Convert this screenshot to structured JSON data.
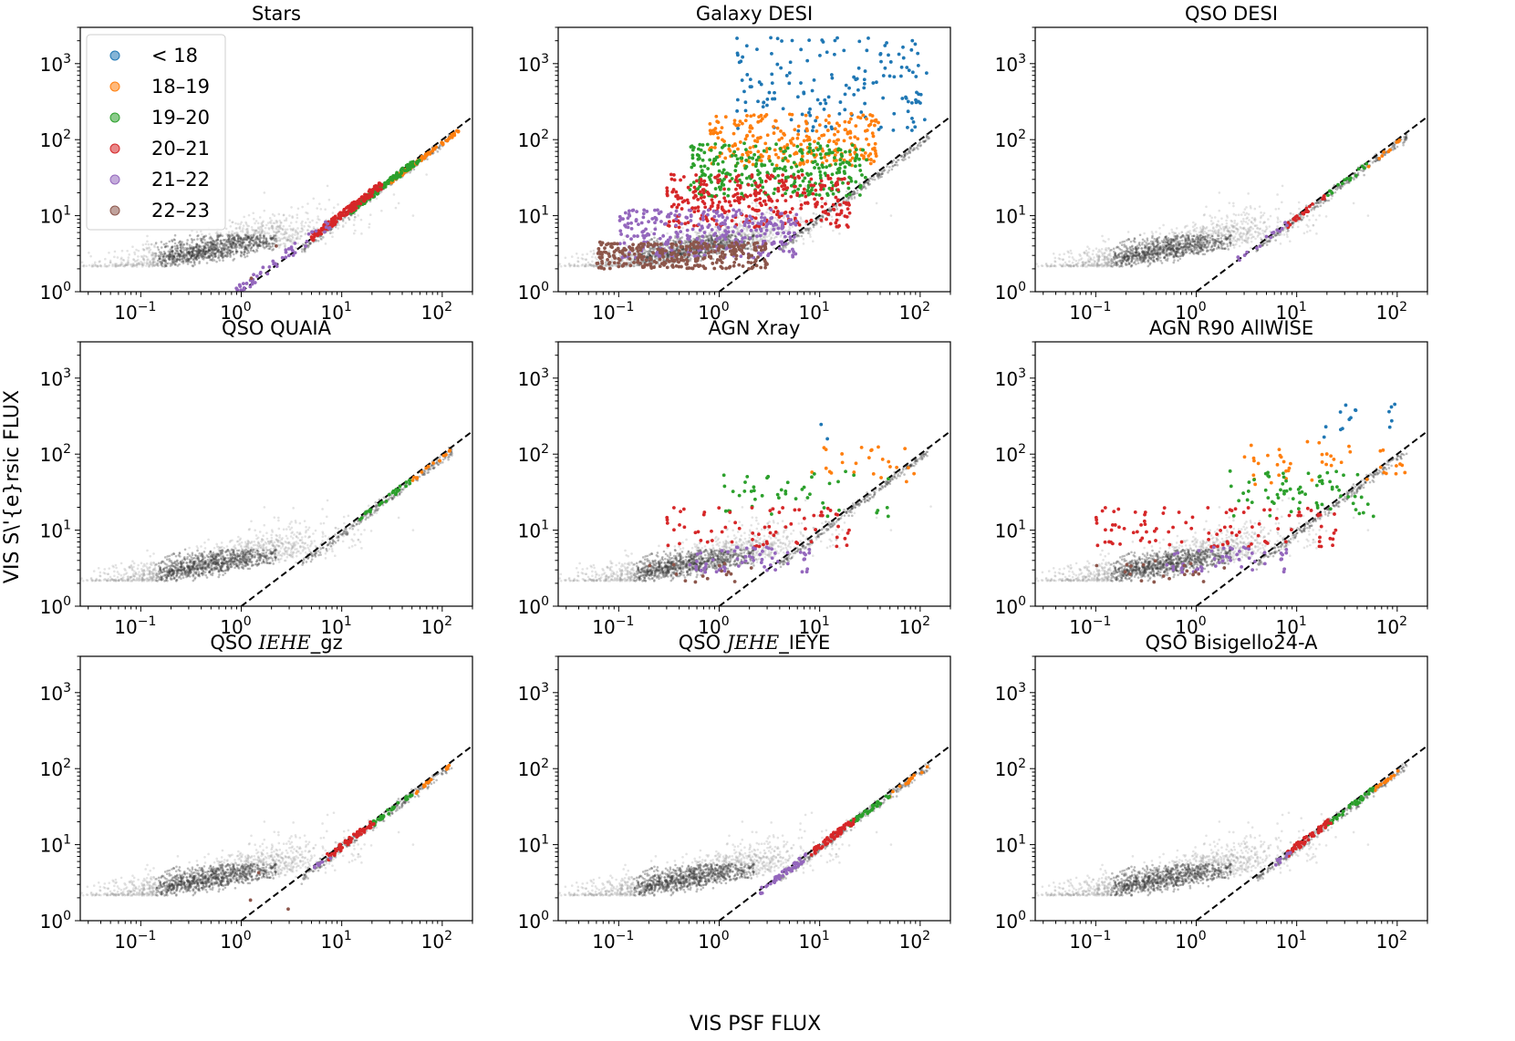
{
  "figure": {
    "xlabel": "VIS PSF FLUX",
    "ylabel": "VIS S\\'{e}rsic FLUX"
  },
  "legend": {
    "entries": [
      {
        "label": "< 18",
        "color": "#1f77b4"
      },
      {
        "label": "18–19",
        "color": "#ff7f0e"
      },
      {
        "label": "19–20",
        "color": "#2ca02c"
      },
      {
        "label": "20–21",
        "color": "#d62728"
      },
      {
        "label": "21–22",
        "color": "#9467bd"
      },
      {
        "label": "22–23",
        "color": "#8c564b"
      }
    ]
  },
  "chart_data": [
    {
      "type": "scatter",
      "title": "Stars",
      "title_parts": {
        "pre": "Stars",
        "math_main": "",
        "math_sub": ""
      },
      "xscale": "log",
      "yscale": "log",
      "xlim": [
        0.025,
        200
      ],
      "ylim": [
        1,
        3000
      ],
      "xticks": [
        {
          "base": "10",
          "exp": "−1"
        },
        {
          "base": "10",
          "exp": "0"
        },
        {
          "base": "10",
          "exp": "1"
        },
        {
          "base": "10",
          "exp": "2"
        }
      ],
      "yticks": [
        {
          "base": "10",
          "exp": "0"
        },
        {
          "base": "10",
          "exp": "1"
        },
        {
          "base": "10",
          "exp": "2"
        },
        {
          "base": "10",
          "exp": "3"
        }
      ],
      "reference_line": "y = x (dashed)",
      "background": "grey density of all sources, peak near x≈0.5, y≈3",
      "series": [
        {
          "name": "< 18",
          "count": 0
        },
        {
          "name": "18–19",
          "x_range": [
            30,
            150
          ],
          "offset": [
            0.85,
            0.95
          ],
          "count": 90
        },
        {
          "name": "19–20",
          "x_range": [
            12,
            60
          ],
          "offset": [
            0.85,
            1.05
          ],
          "count": 120
        },
        {
          "name": "20–21",
          "x_range": [
            5,
            25
          ],
          "offset": [
            0.9,
            1.15
          ],
          "count": 160
        },
        {
          "name": "21–22",
          "x_range": [
            0.5,
            8
          ],
          "offset": [
            0.9,
            1.3
          ],
          "count": 70
        },
        {
          "name": "22–23",
          "x_range": [
            0.15,
            3
          ],
          "offset": [
            1.0,
            2.2
          ],
          "count": 8
        }
      ]
    },
    {
      "type": "scatter",
      "title": "Galaxy DESI",
      "title_parts": {
        "pre": "Galaxy DESI",
        "math_main": "",
        "math_sub": ""
      },
      "xscale": "log",
      "yscale": "log",
      "xlim": [
        0.025,
        200
      ],
      "ylim": [
        1,
        3000
      ],
      "xticks": [
        {
          "base": "10",
          "exp": "−1"
        },
        {
          "base": "10",
          "exp": "0"
        },
        {
          "base": "10",
          "exp": "1"
        },
        {
          "base": "10",
          "exp": "2"
        }
      ],
      "yticks": [
        {
          "base": "10",
          "exp": "0"
        },
        {
          "base": "10",
          "exp": "1"
        },
        {
          "base": "10",
          "exp": "2"
        },
        {
          "base": "10",
          "exp": "3"
        }
      ],
      "reference_line": "y = x (dashed)",
      "background": "grey stellar locus along y≈x for x in [5, 120]",
      "series": [
        {
          "name": "< 18",
          "x_range": [
            1.5,
            120
          ],
          "y_range": [
            130,
            2200
          ],
          "count": 160
        },
        {
          "name": "18–19",
          "x_range": [
            0.8,
            40
          ],
          "y_range": [
            45,
            220
          ],
          "count": 260
        },
        {
          "name": "19–20",
          "x_range": [
            0.5,
            30
          ],
          "y_range": [
            18,
            90
          ],
          "count": 320
        },
        {
          "name": "20–21",
          "x_range": [
            0.3,
            20
          ],
          "y_range": [
            7,
            35
          ],
          "count": 320
        },
        {
          "name": "21–22",
          "x_range": [
            0.1,
            6
          ],
          "y_range": [
            2.8,
            12
          ],
          "count": 320
        },
        {
          "name": "22–23",
          "x_range": [
            0.06,
            3
          ],
          "y_range": [
            2.0,
            4.5
          ],
          "count": 320
        }
      ]
    },
    {
      "type": "scatter",
      "title": "QSO DESI",
      "title_parts": {
        "pre": "QSO DESI",
        "math_main": "",
        "math_sub": ""
      },
      "xscale": "log",
      "yscale": "log",
      "xlim": [
        0.025,
        200
      ],
      "ylim": [
        1,
        3000
      ],
      "xticks": [
        {
          "base": "10",
          "exp": "−1"
        },
        {
          "base": "10",
          "exp": "0"
        },
        {
          "base": "10",
          "exp": "1"
        },
        {
          "base": "10",
          "exp": "2"
        }
      ],
      "yticks": [
        {
          "base": "10",
          "exp": "0"
        },
        {
          "base": "10",
          "exp": "1"
        },
        {
          "base": "10",
          "exp": "2"
        },
        {
          "base": "10",
          "exp": "3"
        }
      ],
      "reference_line": "y = x (dashed)",
      "series": [
        {
          "name": "18–19",
          "x_range": [
            50,
            120
          ],
          "offset": [
            0.85,
            0.95
          ],
          "count": 10
        },
        {
          "name": "19–20",
          "x_range": [
            20,
            50
          ],
          "offset": [
            0.85,
            1.0
          ],
          "count": 15
        },
        {
          "name": "20–21",
          "x_range": [
            8,
            20
          ],
          "offset": [
            0.85,
            1.0
          ],
          "count": 25
        },
        {
          "name": "21–22",
          "x_range": [
            2.5,
            8
          ],
          "offset": [
            0.9,
            1.1
          ],
          "count": 15
        }
      ]
    },
    {
      "type": "scatter",
      "title": "QSO QUAIA",
      "title_parts": {
        "pre": "QSO QUAIA",
        "math_main": "",
        "math_sub": ""
      },
      "xscale": "log",
      "yscale": "log",
      "xlim": [
        0.025,
        200
      ],
      "ylim": [
        1,
        3000
      ],
      "xticks": [
        {
          "base": "10",
          "exp": "−1"
        },
        {
          "base": "10",
          "exp": "0"
        },
        {
          "base": "10",
          "exp": "1"
        },
        {
          "base": "10",
          "exp": "2"
        }
      ],
      "yticks": [
        {
          "base": "10",
          "exp": "0"
        },
        {
          "base": "10",
          "exp": "1"
        },
        {
          "base": "10",
          "exp": "2"
        },
        {
          "base": "10",
          "exp": "3"
        }
      ],
      "reference_line": "y = x (dashed)",
      "series": [
        {
          "name": "18–19",
          "x_range": [
            50,
            120
          ],
          "offset": [
            0.85,
            0.95
          ],
          "count": 15
        },
        {
          "name": "19–20",
          "x_range": [
            15,
            50
          ],
          "offset": [
            0.85,
            1.0
          ],
          "count": 25
        }
      ]
    },
    {
      "type": "scatter",
      "title": "AGN Xray",
      "title_parts": {
        "pre": "AGN Xray",
        "math_main": "",
        "math_sub": ""
      },
      "xscale": "log",
      "yscale": "log",
      "xlim": [
        0.025,
        200
      ],
      "ylim": [
        1,
        3000
      ],
      "xticks": [
        {
          "base": "10",
          "exp": "−1"
        },
        {
          "base": "10",
          "exp": "0"
        },
        {
          "base": "10",
          "exp": "1"
        },
        {
          "base": "10",
          "exp": "2"
        }
      ],
      "yticks": [
        {
          "base": "10",
          "exp": "0"
        },
        {
          "base": "10",
          "exp": "1"
        },
        {
          "base": "10",
          "exp": "2"
        },
        {
          "base": "10",
          "exp": "3"
        }
      ],
      "reference_line": "y = x (dashed)",
      "series": [
        {
          "name": "< 18",
          "x_range": [
            8,
            20
          ],
          "y_range": [
            150,
            250
          ],
          "count": 2
        },
        {
          "name": "18–19",
          "x_range": [
            5,
            100
          ],
          "y_range": [
            40,
            130
          ],
          "count": 25
        },
        {
          "name": "19–20",
          "x_range": [
            1,
            50
          ],
          "y_range": [
            15,
            60
          ],
          "count": 45
        },
        {
          "name": "20–21",
          "x_range": [
            0.3,
            20
          ],
          "y_range": [
            6,
            20
          ],
          "count": 70
        },
        {
          "name": "21–22",
          "x_range": [
            0.5,
            8
          ],
          "y_range": [
            2.8,
            6
          ],
          "count": 60
        },
        {
          "name": "22–23",
          "x_range": [
            0.2,
            3
          ],
          "y_range": [
            2,
            4
          ],
          "count": 15
        }
      ]
    },
    {
      "type": "scatter",
      "title": "AGN R90 AllWISE",
      "title_parts": {
        "pre": "AGN R90 AllWISE",
        "math_main": "",
        "math_sub": ""
      },
      "xscale": "log",
      "yscale": "log",
      "xlim": [
        0.025,
        200
      ],
      "ylim": [
        1,
        3000
      ],
      "xticks": [
        {
          "base": "10",
          "exp": "−1"
        },
        {
          "base": "10",
          "exp": "0"
        },
        {
          "base": "10",
          "exp": "1"
        },
        {
          "base": "10",
          "exp": "2"
        }
      ],
      "yticks": [
        {
          "base": "10",
          "exp": "0"
        },
        {
          "base": "10",
          "exp": "1"
        },
        {
          "base": "10",
          "exp": "2"
        },
        {
          "base": "10",
          "exp": "3"
        }
      ],
      "reference_line": "y = x (dashed)",
      "series": [
        {
          "name": "< 18",
          "x_range": [
            15,
            100
          ],
          "y_range": [
            150,
            500
          ],
          "count": 15
        },
        {
          "name": "18–19",
          "x_range": [
            3,
            120
          ],
          "y_range": [
            40,
            150
          ],
          "count": 45
        },
        {
          "name": "19–20",
          "x_range": [
            2,
            60
          ],
          "y_range": [
            15,
            60
          ],
          "count": 70
        },
        {
          "name": "20–21",
          "x_range": [
            0.1,
            25
          ],
          "y_range": [
            6,
            20
          ],
          "count": 100
        },
        {
          "name": "21–22",
          "x_range": [
            0.5,
            8
          ],
          "y_range": [
            2.8,
            6
          ],
          "count": 50
        },
        {
          "name": "22–23",
          "x_range": [
            0.1,
            3
          ],
          "y_range": [
            2,
            4
          ],
          "count": 20
        }
      ]
    },
    {
      "type": "scatter",
      "title": "QSO I_E H_E_gz",
      "title_parts": {
        "pre": "QSO ",
        "math_main": "IEHE",
        "math_sub": "_gz"
      },
      "xscale": "log",
      "yscale": "log",
      "xlim": [
        0.025,
        200
      ],
      "ylim": [
        1,
        3000
      ],
      "xticks": [
        {
          "base": "10",
          "exp": "−1"
        },
        {
          "base": "10",
          "exp": "0"
        },
        {
          "base": "10",
          "exp": "1"
        },
        {
          "base": "10",
          "exp": "2"
        }
      ],
      "yticks": [
        {
          "base": "10",
          "exp": "0"
        },
        {
          "base": "10",
          "exp": "1"
        },
        {
          "base": "10",
          "exp": "2"
        },
        {
          "base": "10",
          "exp": "3"
        }
      ],
      "reference_line": "y = x (dashed)",
      "series": [
        {
          "name": "18–19",
          "x_range": [
            50,
            120
          ],
          "offset": [
            0.85,
            0.95
          ],
          "count": 15
        },
        {
          "name": "19–20",
          "x_range": [
            20,
            50
          ],
          "offset": [
            0.85,
            1.0
          ],
          "count": 35
        },
        {
          "name": "20–21",
          "x_range": [
            7,
            22
          ],
          "offset": [
            0.85,
            1.05
          ],
          "count": 60
        },
        {
          "name": "21–22",
          "x_range": [
            5,
            8
          ],
          "offset": [
            0.85,
            1.0
          ],
          "count": 10
        },
        {
          "name": "22–23",
          "x_range": [
            0.3,
            3
          ],
          "y_range": [
            1.4,
            6
          ],
          "count": 3
        }
      ]
    },
    {
      "type": "scatter",
      "title": "QSO J_E H_E_I_E Y_E",
      "title_parts": {
        "pre": "QSO ",
        "math_main": "JEHE",
        "math_sub": "_IEYE"
      },
      "xscale": "log",
      "yscale": "log",
      "xlim": [
        0.025,
        200
      ],
      "ylim": [
        1,
        3000
      ],
      "xticks": [
        {
          "base": "10",
          "exp": "−1"
        },
        {
          "base": "10",
          "exp": "0"
        },
        {
          "base": "10",
          "exp": "1"
        },
        {
          "base": "10",
          "exp": "2"
        }
      ],
      "yticks": [
        {
          "base": "10",
          "exp": "0"
        },
        {
          "base": "10",
          "exp": "1"
        },
        {
          "base": "10",
          "exp": "2"
        },
        {
          "base": "10",
          "exp": "3"
        }
      ],
      "reference_line": "y = x (dashed)",
      "series": [
        {
          "name": "18–19",
          "x_range": [
            50,
            120
          ],
          "offset": [
            0.85,
            0.95
          ],
          "count": 15
        },
        {
          "name": "19–20",
          "x_range": [
            20,
            50
          ],
          "offset": [
            0.85,
            1.0
          ],
          "count": 35
        },
        {
          "name": "20–21",
          "x_range": [
            8,
            22
          ],
          "offset": [
            0.85,
            1.05
          ],
          "count": 60
        },
        {
          "name": "21–22",
          "x_range": [
            2.5,
            8
          ],
          "offset": [
            0.85,
            1.05
          ],
          "count": 50
        }
      ]
    },
    {
      "type": "scatter",
      "title": "QSO Bisigello24-A",
      "title_parts": {
        "pre": "QSO Bisigello24-A",
        "math_main": "",
        "math_sub": ""
      },
      "xscale": "log",
      "yscale": "log",
      "xlim": [
        0.025,
        200
      ],
      "ylim": [
        1,
        3000
      ],
      "xticks": [
        {
          "base": "10",
          "exp": "−1"
        },
        {
          "base": "10",
          "exp": "0"
        },
        {
          "base": "10",
          "exp": "1"
        },
        {
          "base": "10",
          "exp": "2"
        }
      ],
      "yticks": [
        {
          "base": "10",
          "exp": "0"
        },
        {
          "base": "10",
          "exp": "1"
        },
        {
          "base": "10",
          "exp": "2"
        },
        {
          "base": "10",
          "exp": "3"
        }
      ],
      "reference_line": "y = x (dashed)",
      "series": [
        {
          "name": "18–19",
          "x_range": [
            60,
            120
          ],
          "offset": [
            0.85,
            0.95
          ],
          "count": 15
        },
        {
          "name": "19–20",
          "x_range": [
            20,
            60
          ],
          "offset": [
            0.85,
            1.0
          ],
          "count": 40
        },
        {
          "name": "20–21",
          "x_range": [
            8,
            22
          ],
          "offset": [
            0.85,
            1.05
          ],
          "count": 60
        },
        {
          "name": "21–22",
          "x_range": [
            6,
            9
          ],
          "offset": [
            0.85,
            1.0
          ],
          "count": 10
        }
      ]
    }
  ]
}
